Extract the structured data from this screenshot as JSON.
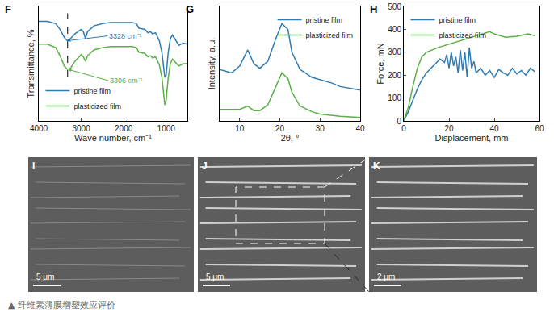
{
  "chart_data": [
    {
      "type": "line",
      "title": "F",
      "x_label": "Wave number, cm⁻¹",
      "y_label": "Transmittance, %",
      "x": [
        4000,
        3800,
        3600,
        3500,
        3400,
        3328,
        3250,
        3150,
        3000,
        2950,
        2900,
        2850,
        2700,
        2500,
        2300,
        2100,
        2000,
        1800,
        1700,
        1640,
        1500,
        1430,
        1370,
        1320,
        1250,
        1160,
        1100,
        1060,
        1030,
        1000,
        950,
        900,
        850,
        800,
        700,
        600,
        500
      ],
      "series": [
        {
          "name": "pristine film",
          "color": "#2e7bb4",
          "values": [
            87,
            87,
            85,
            80,
            73,
            70,
            72,
            76,
            80,
            78,
            72,
            78,
            83,
            85,
            86,
            86,
            86,
            86,
            85,
            81,
            80,
            77,
            78,
            76,
            77,
            70,
            60,
            45,
            38,
            40,
            60,
            72,
            75,
            72,
            66,
            68,
            67
          ]
        },
        {
          "name": "plasticized film",
          "color": "#5aaf47",
          "values": [
            67,
            67,
            64,
            57,
            48,
            45,
            46,
            52,
            58,
            56,
            52,
            57,
            62,
            64,
            65,
            65,
            65,
            65,
            64,
            60,
            59,
            56,
            57,
            55,
            56,
            49,
            38,
            22,
            14,
            18,
            38,
            50,
            54,
            52,
            48,
            50,
            50
          ]
        }
      ],
      "xlim": [
        4000,
        500
      ],
      "xticks": [
        4000,
        3000,
        2000,
        1000
      ],
      "ylim": [
        0,
        100
      ],
      "tick_labels": "x",
      "grid": false,
      "legend": "lower left",
      "vline": {
        "x": 3320,
        "y": [
          38,
          94
        ]
      },
      "annotations": [
        {
          "text": "3328 cm⁻¹",
          "x": 3328,
          "y": 70,
          "color": "#2e7bb4"
        },
        {
          "text": "3306 cm⁻¹",
          "x": 3306,
          "y": 45,
          "color": "#5aaf47"
        }
      ]
    },
    {
      "type": "line",
      "title": "G",
      "x_label": "2θ, °",
      "y_label": "Intensity, a.u.",
      "x": [
        5,
        8,
        10,
        12,
        13.5,
        15,
        17,
        19,
        20.5,
        22,
        23,
        25,
        28,
        30,
        33,
        35,
        40
      ],
      "series": [
        {
          "name": "pristine film",
          "color": "#2e7bb4",
          "values": [
            45,
            42,
            48,
            62,
            50,
            46,
            52,
            72,
            85,
            80,
            60,
            45,
            38,
            36,
            33,
            30,
            27
          ]
        },
        {
          "name": "plasticized film",
          "color": "#5aaf47",
          "values": [
            10,
            10,
            10,
            13,
            9,
            9,
            14,
            30,
            42,
            37,
            25,
            13,
            8,
            6,
            5,
            4,
            3
          ]
        }
      ],
      "xlim": [
        5,
        40
      ],
      "xticks": [
        10,
        20,
        30,
        40
      ],
      "ylim": [
        0,
        100
      ],
      "tick_labels": "x",
      "grid": false,
      "legend": "upper right"
    },
    {
      "type": "line",
      "title": "H",
      "x_label": "Displacement, mm",
      "y_label": "Force, mN",
      "series": [
        {
          "name": "pristine film",
          "color": "#2e7bb4",
          "x": [
            0,
            2,
            4,
            6,
            8,
            10,
            12,
            14,
            16,
            18,
            19,
            20,
            21,
            22,
            23,
            24,
            25,
            26,
            27,
            28,
            29,
            30,
            31,
            32,
            34,
            36,
            38,
            40,
            42,
            44,
            46,
            48,
            50,
            52,
            54,
            56,
            58
          ],
          "values": [
            0,
            40,
            90,
            140,
            180,
            210,
            230,
            250,
            270,
            255,
            290,
            230,
            300,
            240,
            280,
            210,
            310,
            220,
            300,
            190,
            320,
            230,
            260,
            210,
            230,
            200,
            220,
            190,
            225,
            210,
            200,
            230,
            205,
            220,
            200,
            230,
            215
          ]
        },
        {
          "name": "plasticized film",
          "color": "#5aaf47",
          "x": [
            0,
            2,
            4,
            6,
            8,
            10,
            15,
            20,
            25,
            30,
            35,
            38,
            40,
            45,
            50,
            55,
            58
          ],
          "values": [
            0,
            60,
            150,
            230,
            280,
            300,
            320,
            335,
            350,
            365,
            380,
            390,
            380,
            365,
            370,
            380,
            372
          ]
        }
      ],
      "xlim": [
        0,
        60
      ],
      "xticks": [
        0,
        20,
        40,
        60
      ],
      "ylim": [
        0,
        500
      ],
      "yticks": [
        0,
        100,
        200,
        300,
        400,
        500
      ],
      "grid": false,
      "legend": "upper left"
    }
  ],
  "images": [
    {
      "label": "I",
      "scale_bar": "5 μm"
    },
    {
      "label": "J",
      "scale_bar": "5 μm"
    },
    {
      "label": "K",
      "scale_bar": "2 μm"
    }
  ],
  "caption": "▲ 纤维素薄膜增塑效应评价"
}
